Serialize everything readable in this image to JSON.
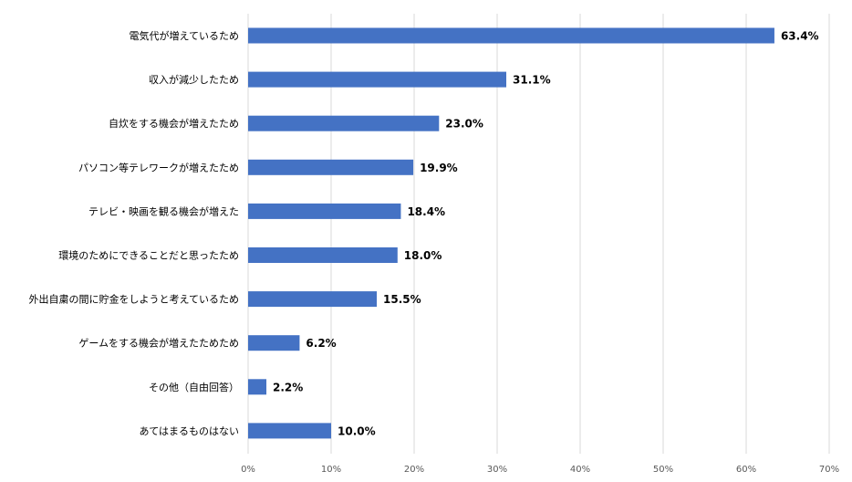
{
  "chart_data": {
    "type": "bar",
    "orientation": "horizontal",
    "categories": [
      "電気代が増えているため",
      "収入が減少したため",
      "自炊をする機会が増えたため",
      "パソコン等テレワークが増えたため",
      "テレビ・映画を観る機会が増えた",
      "環境のためにできることだと思ったため",
      "外出自粛の間に貯金をしようと考えているため",
      "ゲームをする機会が増えたためため",
      "その他（自由回答）",
      "あてはまるものはない"
    ],
    "values": [
      63.4,
      31.1,
      23.0,
      19.9,
      18.4,
      18.0,
      15.5,
      6.2,
      2.2,
      10.0
    ],
    "value_labels": [
      "63.4%",
      "31.1%",
      "23.0%",
      "19.9%",
      "18.4%",
      "18.0%",
      "15.5%",
      "6.2%",
      "2.2%",
      "10.0%"
    ],
    "xlim": [
      0,
      70
    ],
    "x_ticks": [
      0,
      10,
      20,
      30,
      40,
      50,
      60,
      70
    ],
    "x_tick_labels": [
      "0%",
      "10%",
      "20%",
      "30%",
      "40%",
      "50%",
      "60%",
      "70%"
    ],
    "grid": true,
    "bar_color": "#4472C4",
    "title": "",
    "xlabel": "",
    "ylabel": ""
  }
}
